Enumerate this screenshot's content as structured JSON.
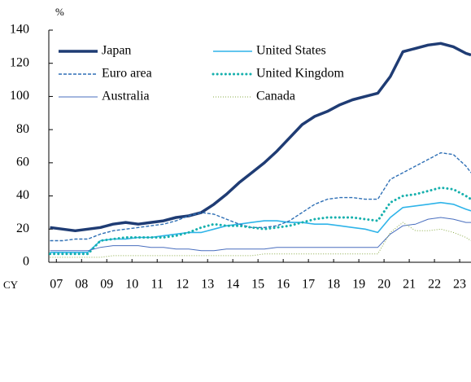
{
  "chart_data": {
    "type": "line",
    "y_label": "%",
    "x_label": "CY",
    "x": [
      2006.75,
      2007.25,
      2007.75,
      2008.25,
      2008.75,
      2009.25,
      2009.75,
      2010.25,
      2010.75,
      2011.25,
      2011.75,
      2012.25,
      2012.75,
      2013.25,
      2013.75,
      2014.25,
      2014.75,
      2015.25,
      2015.75,
      2016.25,
      2016.75,
      2017.25,
      2017.75,
      2018.25,
      2018.75,
      2019.25,
      2019.75,
      2020.25,
      2020.75,
      2021.25,
      2021.75,
      2022.25,
      2022.75,
      2023.25,
      2023.45
    ],
    "series": [
      {
        "name": "Japan",
        "color": "#1f3c74",
        "width": 3.5,
        "style": "solid",
        "values": [
          21,
          20,
          19,
          20,
          21,
          23,
          24,
          23,
          24,
          25,
          27,
          28,
          30,
          35,
          41,
          48,
          54,
          60,
          67,
          75,
          83,
          88,
          91,
          95,
          98,
          100,
          102,
          112,
          127,
          129,
          131,
          132,
          130,
          126,
          125
        ]
      },
      {
        "name": "United States",
        "color": "#2fb4e9",
        "width": 1.6,
        "style": "solid",
        "values": [
          6,
          6,
          6,
          6,
          13,
          14,
          14,
          15,
          15,
          16,
          17,
          18,
          18,
          20,
          22,
          23,
          24,
          25,
          25,
          24,
          24,
          23,
          23,
          22,
          21,
          20,
          18,
          27,
          33,
          34,
          35,
          36,
          35,
          32,
          31
        ]
      },
      {
        "name": "Euro area",
        "color": "#2e6fb5",
        "width": 1.4,
        "style": "dashed",
        "values": [
          13,
          13,
          14,
          14,
          17,
          19,
          20,
          21,
          22,
          23,
          25,
          28,
          30,
          29,
          26,
          23,
          21,
          21,
          22,
          25,
          30,
          35,
          38,
          39,
          39,
          38,
          38,
          50,
          54,
          58,
          62,
          66,
          65,
          58,
          54
        ]
      },
      {
        "name": "United Kingdom",
        "color": "#16b0ad",
        "width": 3,
        "style": "dotted",
        "values": [
          5,
          5,
          5,
          5,
          13,
          14,
          15,
          15,
          15,
          15,
          16,
          18,
          21,
          23,
          22,
          22,
          21,
          20,
          21,
          22,
          24,
          26,
          27,
          27,
          27,
          26,
          25,
          36,
          40,
          41,
          43,
          45,
          44,
          40,
          38
        ]
      },
      {
        "name": "Australia",
        "color": "#4a6fbf",
        "width": 1,
        "style": "solid",
        "values": [
          7,
          7,
          7,
          7,
          9,
          10,
          10,
          10,
          9,
          9,
          8,
          8,
          7,
          7,
          8,
          8,
          8,
          8,
          9,
          9,
          9,
          9,
          9,
          9,
          9,
          9,
          9,
          17,
          22,
          23,
          26,
          27,
          26,
          24,
          24
        ]
      },
      {
        "name": "Canada",
        "color": "#8aab45",
        "width": 1,
        "style": "dotted",
        "values": [
          3,
          3,
          3,
          3,
          3,
          4,
          4,
          4,
          4,
          4,
          4,
          4,
          4,
          4,
          4,
          4,
          4,
          5,
          5,
          5,
          5,
          5,
          5,
          5,
          5,
          5,
          5,
          18,
          24,
          19,
          19,
          20,
          18,
          15,
          13
        ]
      }
    ],
    "xlim": [
      2006.7,
      2023.45
    ],
    "xticks": [
      {
        "value": 2007,
        "label": "07"
      },
      {
        "value": 2008,
        "label": "08"
      },
      {
        "value": 2009,
        "label": "09"
      },
      {
        "value": 2010,
        "label": "10"
      },
      {
        "value": 2011,
        "label": "11"
      },
      {
        "value": 2012,
        "label": "12"
      },
      {
        "value": 2013,
        "label": "13"
      },
      {
        "value": 2014,
        "label": "14"
      },
      {
        "value": 2015,
        "label": "15"
      },
      {
        "value": 2016,
        "label": "16"
      },
      {
        "value": 2017,
        "label": "17"
      },
      {
        "value": 2018,
        "label": "18"
      },
      {
        "value": 2019,
        "label": "19"
      },
      {
        "value": 2020,
        "label": "20"
      },
      {
        "value": 2021,
        "label": "21"
      },
      {
        "value": 2022,
        "label": "22"
      },
      {
        "value": 2023,
        "label": "23"
      }
    ],
    "ylim": [
      0,
      140
    ],
    "yticks": [
      0,
      20,
      40,
      60,
      80,
      100,
      120,
      140
    ],
    "grid": false,
    "legend": "top-left"
  }
}
